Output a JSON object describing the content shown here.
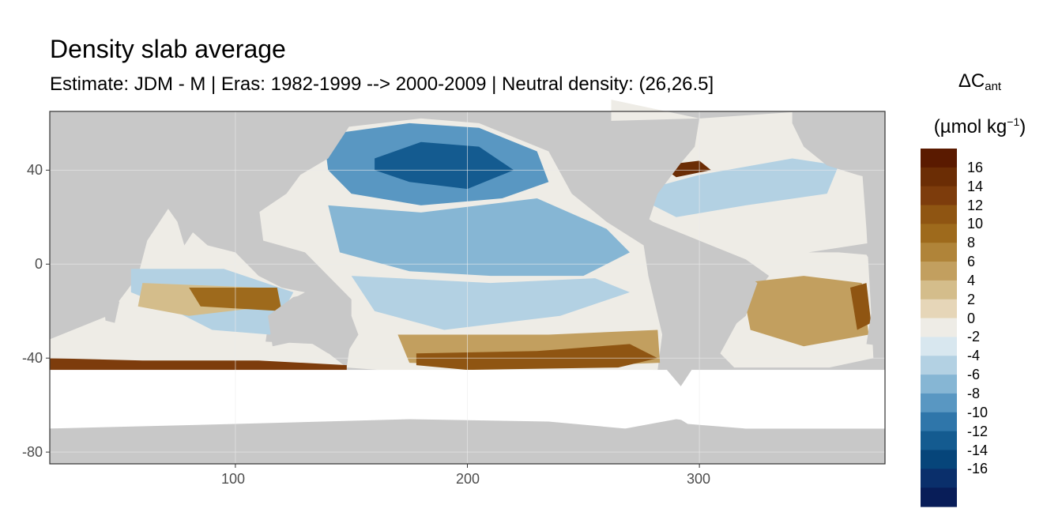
{
  "chart_data": {
    "type": "heatmap",
    "title": "Density slab average",
    "subtitle": "Estimate: JDM - M | Eras: 1982-1999 --> 2000-2009 | Neutral density: (26,26.5]",
    "xlim": [
      20,
      380
    ],
    "ylim": [
      -85,
      65
    ],
    "x_ticks": [
      100,
      200,
      300
    ],
    "y_ticks": [
      40,
      0,
      -40,
      -80
    ],
    "grid": true,
    "legend": {
      "position": "right",
      "title_main": "ΔC",
      "title_sub": "ant",
      "title_unit_open": "(µmol kg",
      "title_unit_sup": "−1",
      "title_unit_close": ")",
      "labels": [
        "16",
        "14",
        "12",
        "10",
        "8",
        "6",
        "4",
        "2",
        "0",
        "-2",
        "-4",
        "-6",
        "-8",
        "-10",
        "-12",
        "-14",
        "-16"
      ],
      "colors": [
        "#5a1a00",
        "#6b2d05",
        "#7d3c0c",
        "#8f5512",
        "#9e6a1c",
        "#b08439",
        "#c29f5f",
        "#d4bd8b",
        "#e6d6b8",
        "#eeece6",
        "#d8e7ef",
        "#b3d1e3",
        "#86b6d4",
        "#5997c2",
        "#2f76aa",
        "#145b90",
        "#06457a",
        "#0a2f6b",
        "#081d58"
      ]
    },
    "colors": {
      "land": "#c8c8c8",
      "no_data": "#ffffff",
      "panel_border": "#333333",
      "grid": "#ebebeb"
    }
  }
}
